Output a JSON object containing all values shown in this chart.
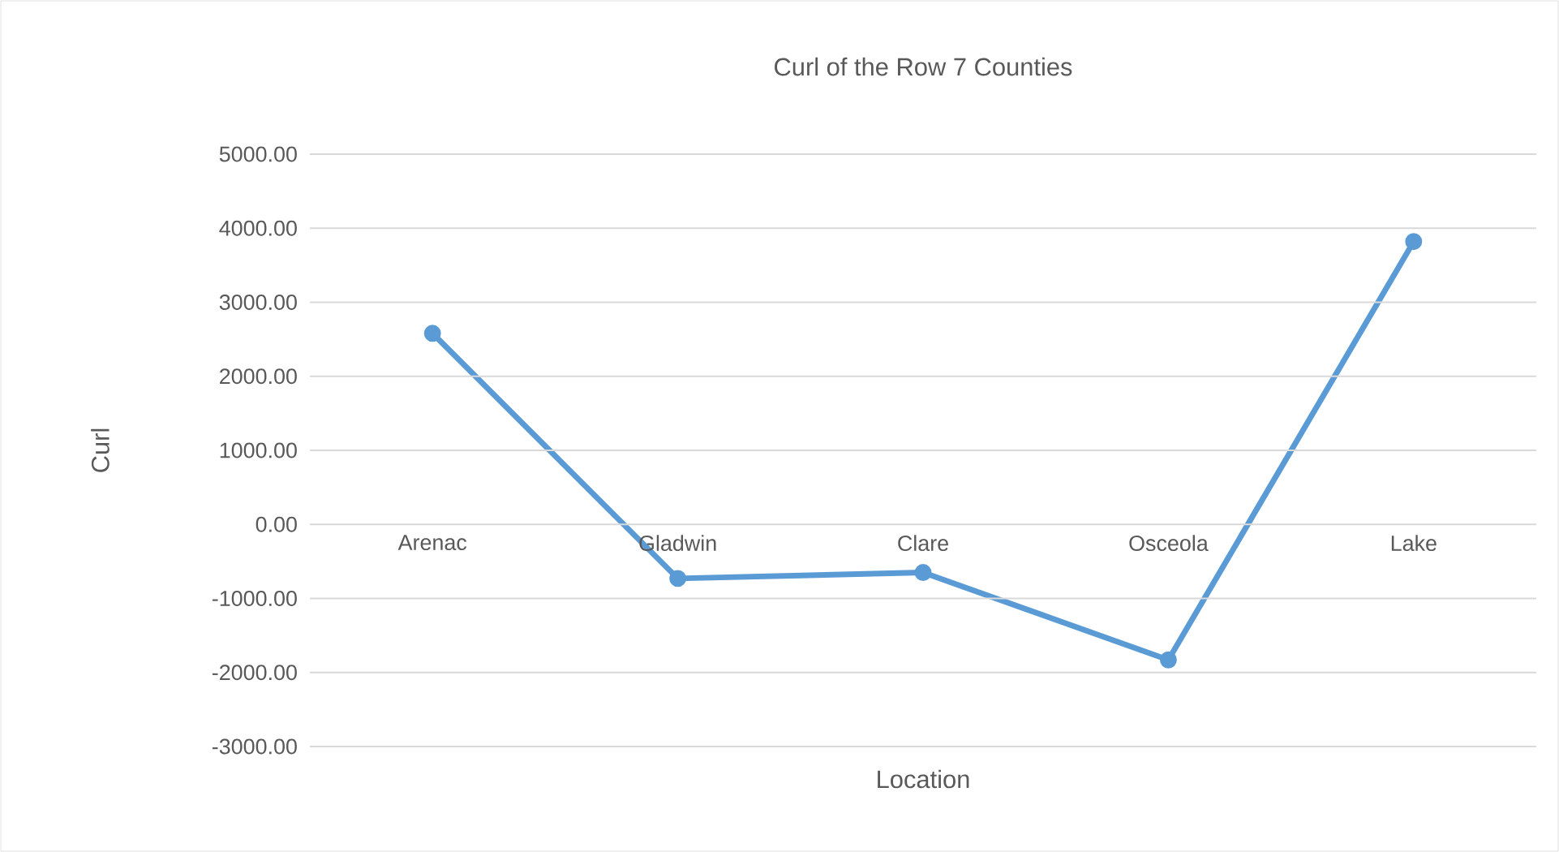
{
  "chart_data": {
    "type": "line",
    "title": "Curl of the Row 7 Counties",
    "xlabel": "Location",
    "ylabel": "Curl",
    "categories": [
      "Arenac",
      "Gladwin",
      "Clare",
      "Osceola",
      "Lake"
    ],
    "series": [
      {
        "color": "#5b9bd5",
        "values": [
          2580,
          -730,
          -650,
          -1830,
          3820
        ]
      }
    ],
    "ylim": [
      -3000,
      5000
    ],
    "yticks": [
      {
        "value": -3000,
        "label": "-3000.00"
      },
      {
        "value": -2000,
        "label": "-2000.00"
      },
      {
        "value": -1000,
        "label": "-1000.00"
      },
      {
        "value": 0,
        "label": "0.00"
      },
      {
        "value": 1000,
        "label": "1000.00"
      },
      {
        "value": 2000,
        "label": "2000.00"
      },
      {
        "value": 3000,
        "label": "3000.00"
      },
      {
        "value": 4000,
        "label": "4000.00"
      },
      {
        "value": 5000,
        "label": "5000.00"
      }
    ],
    "grid": "y",
    "marker": "circle",
    "line_style": "solid"
  }
}
